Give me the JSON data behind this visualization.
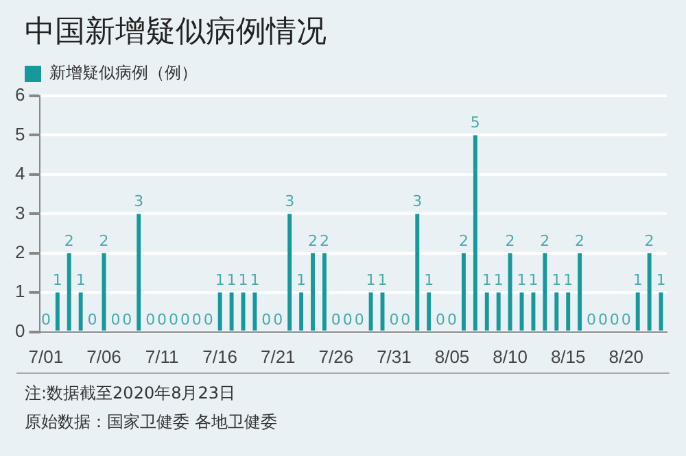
{
  "chart_data": {
    "type": "bar",
    "title": "中国新增疑似病例情况",
    "categories": [
      "7/01",
      null,
      null,
      null,
      null,
      "7/06",
      null,
      null,
      null,
      null,
      "7/11",
      null,
      null,
      null,
      null,
      "7/16",
      null,
      null,
      null,
      null,
      "7/21",
      null,
      null,
      null,
      null,
      "7/26",
      null,
      null,
      null,
      null,
      "7/31",
      null,
      null,
      null,
      null,
      "8/05",
      null,
      null,
      null,
      null,
      "8/10",
      null,
      null,
      null,
      null,
      "8/15",
      null,
      null,
      null,
      null,
      "8/20",
      null,
      null,
      null
    ],
    "series": [
      {
        "name": "新增疑似病例（例）",
        "color": "#17999b",
        "values": [
          0,
          1,
          2,
          1,
          0,
          2,
          0,
          0,
          3,
          0,
          0,
          0,
          0,
          0,
          0,
          1,
          1,
          1,
          1,
          0,
          0,
          3,
          1,
          2,
          2,
          0,
          0,
          0,
          1,
          1,
          0,
          0,
          3,
          1,
          0,
          0,
          2,
          5,
          1,
          1,
          2,
          1,
          1,
          2,
          1,
          1,
          2,
          0,
          0,
          0,
          0,
          1,
          2,
          1
        ]
      }
    ],
    "ylim": [
      0,
      6
    ],
    "yticks": [
      0,
      1,
      2,
      3,
      4,
      5,
      6
    ],
    "grid": "y",
    "legend": "top left",
    "data_labels": true,
    "annotations": [
      "注:数据截至2020年8月23日",
      "原始数据：国家卫健委 各地卫健委"
    ]
  }
}
